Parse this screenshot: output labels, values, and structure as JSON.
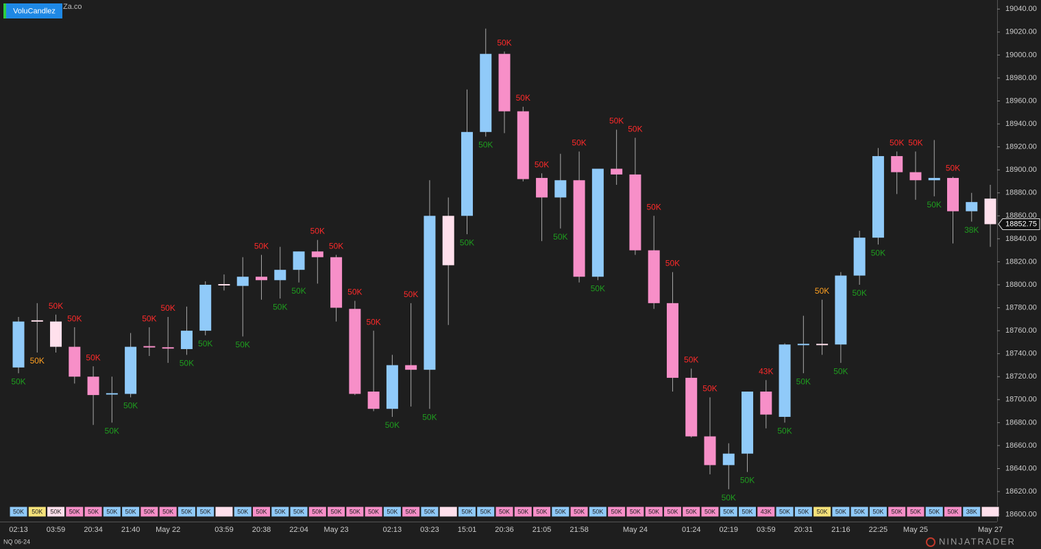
{
  "chart_data": {
    "type": "candlestick",
    "indicator": "VoluCandlez",
    "watermark": "Za.co",
    "instrument": "NQ 06-24",
    "logo": "NINJATRADER",
    "x": [
      "02:13",
      null,
      "03:59",
      null,
      "20:34",
      null,
      "21:40",
      null,
      "May 22",
      null,
      null,
      "03:59",
      null,
      "20:38",
      null,
      "22:04",
      null,
      "May 23",
      null,
      null,
      "02:13",
      null,
      "03:23",
      null,
      "15:01",
      null,
      "20:36",
      null,
      "21:05",
      null,
      "21:58",
      null,
      null,
      "May 24",
      null,
      null,
      "01:24",
      null,
      "02:19",
      null,
      "03:59",
      null,
      "20:31",
      null,
      "21:16",
      null,
      "22:25",
      null,
      "May 25",
      null,
      null,
      null,
      "May 27"
    ],
    "open": [
      18728,
      18768.5,
      18768,
      18746,
      18720,
      18704,
      18705,
      18746,
      18745,
      18744,
      18760,
      18800,
      18799,
      18807,
      18804,
      18813,
      18829,
      18824,
      18779,
      18707,
      18692,
      18730,
      18726,
      18860,
      18860,
      18933,
      19001,
      18951,
      18893,
      18876,
      18891,
      18807,
      18901,
      18896,
      18830,
      18784,
      18719,
      18668,
      18643,
      18653,
      18707,
      18685,
      18748,
      18748,
      18748,
      18808,
      18841,
      18912,
      18898,
      18891,
      18893,
      18864,
      18875
    ],
    "high": [
      18772,
      18784,
      18774,
      18763,
      18729,
      18720,
      18758,
      18763,
      18772,
      18781,
      18803,
      18809,
      18824,
      18826,
      18833,
      18829,
      18839,
      18826,
      18786,
      18760,
      18739,
      18784,
      18891,
      18876,
      18970,
      19023,
      19003,
      18955,
      18897,
      18914,
      18916,
      18901,
      18935,
      18928,
      18860,
      18811,
      18727,
      18702,
      18662,
      18707,
      18717,
      18749,
      18773,
      18787,
      18811,
      18847,
      18919,
      18916,
      18916,
      18926,
      18894,
      18880,
      18887
    ],
    "low": [
      18723,
      18741,
      18741,
      18714,
      18678,
      18680,
      18702,
      18738,
      18732,
      18739,
      18756,
      18795,
      18755,
      18787,
      18788,
      18802,
      18801,
      18768,
      18704,
      18690,
      18685,
      18694,
      18692,
      18765,
      18844,
      18929,
      18932,
      18890,
      18838,
      18849,
      18802,
      18804,
      18887,
      18826,
      18779,
      18707,
      18667,
      18635,
      18622,
      18637,
      18675,
      18680,
      18723,
      18739,
      18732,
      18800,
      18835,
      18879,
      18874,
      18877,
      18836,
      18855,
      18833
    ],
    "close": [
      18768,
      18768.5,
      18746,
      18720,
      18704,
      18705,
      18746,
      18745,
      18745,
      18760,
      18800,
      18800,
      18807,
      18804,
      18813,
      18829,
      18824,
      18780,
      18705,
      18692,
      18730,
      18726,
      18860,
      18817,
      18933,
      19001,
      18951,
      18892,
      18876,
      18891,
      18807,
      18901,
      18896,
      18830,
      18784,
      18719,
      18668,
      18643,
      18653,
      18707,
      18687,
      18748,
      18748,
      18748,
      18808,
      18841,
      18912,
      18898,
      18891,
      18893,
      18864,
      18872,
      18852.75
    ],
    "volumes": [
      50000,
      50000,
      50000,
      50000,
      50000,
      50000,
      50000,
      50000,
      50000,
      50000,
      50000,
      null,
      50000,
      50000,
      50000,
      50000,
      50000,
      50000,
      50000,
      50000,
      50000,
      50000,
      50000,
      null,
      50000,
      50000,
      50000,
      50000,
      50000,
      50000,
      50000,
      50000,
      50000,
      50000,
      50000,
      50000,
      50000,
      50000,
      50000,
      50000,
      43000,
      50000,
      50000,
      50000,
      50000,
      50000,
      50000,
      50000,
      50000,
      50000,
      50000,
      38000,
      null
    ],
    "volume_labels": [
      "50K",
      "50K",
      "50K",
      "50K",
      "50K",
      "50K",
      "50K",
      "50K",
      "50K",
      "50K",
      "50K",
      null,
      "50K",
      "50K",
      "50K",
      "50K",
      "50K",
      "50K",
      "50K",
      "50K",
      "50K",
      "50K",
      "50K",
      null,
      "50K",
      "50K",
      "50K",
      "50K",
      "50K",
      "50K",
      "50K",
      "50K",
      "50K",
      "50K",
      "50K",
      "50K",
      "50K",
      "50K",
      "50K",
      "50K",
      "43K",
      "50K",
      "50K",
      "50K",
      "50K",
      "50K",
      "50K",
      "50K",
      "50K",
      "50K",
      "50K",
      "38K",
      null
    ],
    "bar_colors": [
      "#90caf9",
      "#ffe0ec",
      "#ffe0ec",
      "#f78fc8",
      "#f78fc8",
      "#90caf9",
      "#90caf9",
      "#f78fc8",
      "#f78fc8",
      "#90caf9",
      "#90caf9",
      "#ffe0ec",
      "#90caf9",
      "#f78fc8",
      "#90caf9",
      "#90caf9",
      "#f78fc8",
      "#f78fc8",
      "#f78fc8",
      "#f78fc8",
      "#90caf9",
      "#f78fc8",
      "#90caf9",
      "#ffe0ec",
      "#90caf9",
      "#90caf9",
      "#f78fc8",
      "#f78fc8",
      "#f78fc8",
      "#90caf9",
      "#f78fc8",
      "#90caf9",
      "#f78fc8",
      "#f78fc8",
      "#f78fc8",
      "#f78fc8",
      "#f78fc8",
      "#f78fc8",
      "#90caf9",
      "#90caf9",
      "#f78fc8",
      "#90caf9",
      "#90caf9",
      "#ffe0ec",
      "#90caf9",
      "#90caf9",
      "#90caf9",
      "#f78fc8",
      "#f78fc8",
      "#90caf9",
      "#f78fc8",
      "#90caf9",
      "#ffe0ec"
    ],
    "label_colors": [
      "#1e9e1e",
      "#ffa020",
      "#ff2a2a",
      "#ff2a2a",
      "#ff2a2a",
      "#1e9e1e",
      "#1e9e1e",
      "#ff2a2a",
      "#ff2a2a",
      "#1e9e1e",
      "#1e9e1e",
      null,
      "#1e9e1e",
      "#ff2a2a",
      "#1e9e1e",
      "#1e9e1e",
      "#ff2a2a",
      "#ff2a2a",
      "#ff2a2a",
      "#ff2a2a",
      "#1e9e1e",
      "#ff2a2a",
      "#1e9e1e",
      null,
      "#1e9e1e",
      "#1e9e1e",
      "#ff2a2a",
      "#ff2a2a",
      "#ff2a2a",
      "#1e9e1e",
      "#ff2a2a",
      "#1e9e1e",
      "#ff2a2a",
      "#ff2a2a",
      "#ff2a2a",
      "#ff2a2a",
      "#ff2a2a",
      "#ff2a2a",
      "#1e9e1e",
      "#1e9e1e",
      "#ff2a2a",
      "#1e9e1e",
      "#1e9e1e",
      "#ffa020",
      "#1e9e1e",
      "#1e9e1e",
      "#1e9e1e",
      "#ff2a2a",
      "#ff2a2a",
      "#1e9e1e",
      "#ff2a2a",
      "#1e9e1e",
      null
    ],
    "label_sides": [
      "below",
      "below",
      "above",
      "above",
      "above",
      "below",
      "below",
      "above",
      "above",
      "below",
      "below",
      null,
      "below",
      "above",
      "below",
      "below",
      "above",
      "above",
      "above",
      "above",
      "below",
      "above",
      "below",
      null,
      "below",
      "below",
      "above",
      "above",
      "above",
      "below",
      "above",
      "below",
      "above",
      "above",
      "above",
      "above",
      "above",
      "above",
      "below",
      "below",
      "above",
      "below",
      "below",
      "above",
      "below",
      "below",
      "below",
      "above",
      "above",
      "below",
      "above",
      "below",
      null
    ],
    "strip_highlight": "#f5e27a",
    "highlight_label_color": "#ffa020",
    "ylim": [
      18595,
      19047
    ],
    "yticks": [
      {
        "value": 18600,
        "label": "18600.00"
      },
      {
        "value": 18620,
        "label": "18620.00"
      },
      {
        "value": 18640,
        "label": "18640.00"
      },
      {
        "value": 18660,
        "label": "18660.00"
      },
      {
        "value": 18680,
        "label": "18680.00"
      },
      {
        "value": 18700,
        "label": "18700.00"
      },
      {
        "value": 18720,
        "label": "18720.00"
      },
      {
        "value": 18740,
        "label": "18740.00"
      },
      {
        "value": 18760,
        "label": "18760.00"
      },
      {
        "value": 18780,
        "label": "18780.00"
      },
      {
        "value": 18800,
        "label": "18800.00"
      },
      {
        "value": 18820,
        "label": "18820.00"
      },
      {
        "value": 18840,
        "label": "18840.00"
      },
      {
        "value": 18860,
        "label": "18860.00"
      },
      {
        "value": 18880,
        "label": "18880.00"
      },
      {
        "value": 18900,
        "label": "18900.00"
      },
      {
        "value": 18920,
        "label": "18920.00"
      },
      {
        "value": 18940,
        "label": "18940.00"
      },
      {
        "value": 18960,
        "label": "18960.00"
      },
      {
        "value": 18980,
        "label": "18980.00"
      },
      {
        "value": 19000,
        "label": "19000.00"
      },
      {
        "value": 19020,
        "label": "19020.00"
      },
      {
        "value": 19040,
        "label": "19040.00"
      }
    ],
    "grid": false
  }
}
